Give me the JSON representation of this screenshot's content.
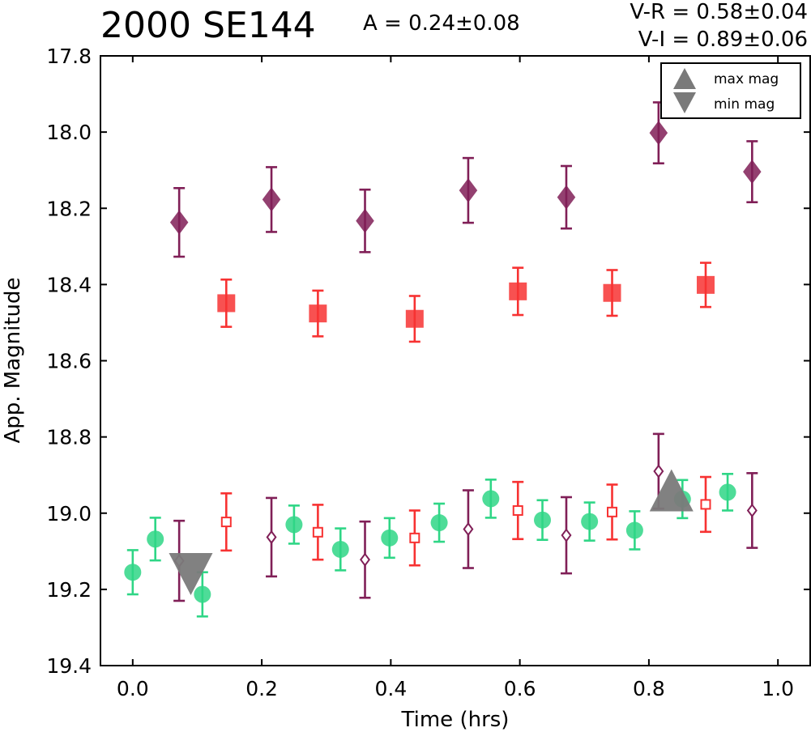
{
  "header": {
    "title": "2000 SE144",
    "amplitude": "A  = 0.24±0.08",
    "v_r": "V-R = 0.58±0.04",
    "v_i": "V-I  = 0.89±0.06"
  },
  "chart_data": {
    "type": "scatter",
    "title": "2000 SE144",
    "xlabel": "Time (hrs)",
    "ylabel": "App. Magnitude",
    "xlim": [
      -0.05,
      1.05
    ],
    "ylim": [
      19.4,
      17.8
    ],
    "y_inverted": true,
    "grid": false,
    "xticks": [
      "0.0",
      "0.2",
      "0.4",
      "0.6",
      "0.8",
      "1.0"
    ],
    "yticks": [
      "17.8",
      "18.0",
      "18.2",
      "18.4",
      "18.6",
      "18.8",
      "19.0",
      "19.2",
      "19.4"
    ],
    "legend": {
      "placement": "top-right",
      "entries": [
        {
          "label": "max mag",
          "marker": "triangle-up",
          "color": "#7a7a7a"
        },
        {
          "label": "min mag",
          "marker": "triangle-down",
          "color": "#7a7a7a"
        }
      ]
    },
    "series": [
      {
        "color": "#801f57",
        "marker": "diamond",
        "filled": true,
        "x": [
          0.072,
          0.215,
          0.36,
          0.52,
          0.672,
          0.815,
          0.96
        ],
        "y": [
          18.237,
          18.177,
          18.233,
          18.153,
          18.171,
          18.002,
          18.104
        ],
        "err": [
          0.09,
          0.085,
          0.082,
          0.085,
          0.082,
          0.08,
          0.08
        ]
      },
      {
        "color": "#f73232",
        "marker": "square",
        "filled": true,
        "x": [
          0.145,
          0.287,
          0.437,
          0.597,
          0.743,
          0.888
        ],
        "y": [
          18.449,
          18.476,
          18.49,
          18.418,
          18.422,
          18.401
        ],
        "err": [
          0.062,
          0.06,
          0.06,
          0.062,
          0.06,
          0.058
        ]
      },
      {
        "color": "#2fd686",
        "marker": "circle",
        "filled": true,
        "x": [
          0.0,
          0.035,
          0.108,
          0.25,
          0.322,
          0.398,
          0.475,
          0.555,
          0.635,
          0.708,
          0.778,
          0.852,
          0.922
        ],
        "y": [
          19.155,
          19.068,
          19.213,
          19.03,
          19.095,
          19.065,
          19.025,
          18.962,
          19.018,
          19.022,
          19.045,
          18.963,
          18.945
        ],
        "err": [
          0.058,
          0.056,
          0.058,
          0.05,
          0.055,
          0.052,
          0.05,
          0.05,
          0.052,
          0.05,
          0.05,
          0.05,
          0.048
        ]
      },
      {
        "color": "#f73232",
        "marker": "square",
        "filled": false,
        "x": [
          0.145,
          0.287,
          0.437,
          0.597,
          0.743,
          0.888
        ],
        "y": [
          19.023,
          19.05,
          19.065,
          18.993,
          18.997,
          18.977
        ],
        "err": [
          0.075,
          0.072,
          0.072,
          0.075,
          0.072,
          0.072
        ]
      },
      {
        "color": "#801f57",
        "marker": "diamond",
        "filled": false,
        "x": [
          0.072,
          0.215,
          0.36,
          0.52,
          0.672,
          0.815,
          0.96
        ],
        "y": [
          19.125,
          19.063,
          19.122,
          19.042,
          19.058,
          18.89,
          18.993
        ],
        "err": [
          0.105,
          0.103,
          0.1,
          0.102,
          0.1,
          0.098,
          0.098
        ]
      }
    ],
    "extrema": [
      {
        "label": "max mag",
        "marker": "triangle-up",
        "x": 0.835,
        "y": 18.94,
        "color": "#7a7a7a"
      },
      {
        "label": "min mag",
        "marker": "triangle-down",
        "x": 0.09,
        "y": 19.16,
        "color": "#7a7a7a"
      }
    ]
  }
}
